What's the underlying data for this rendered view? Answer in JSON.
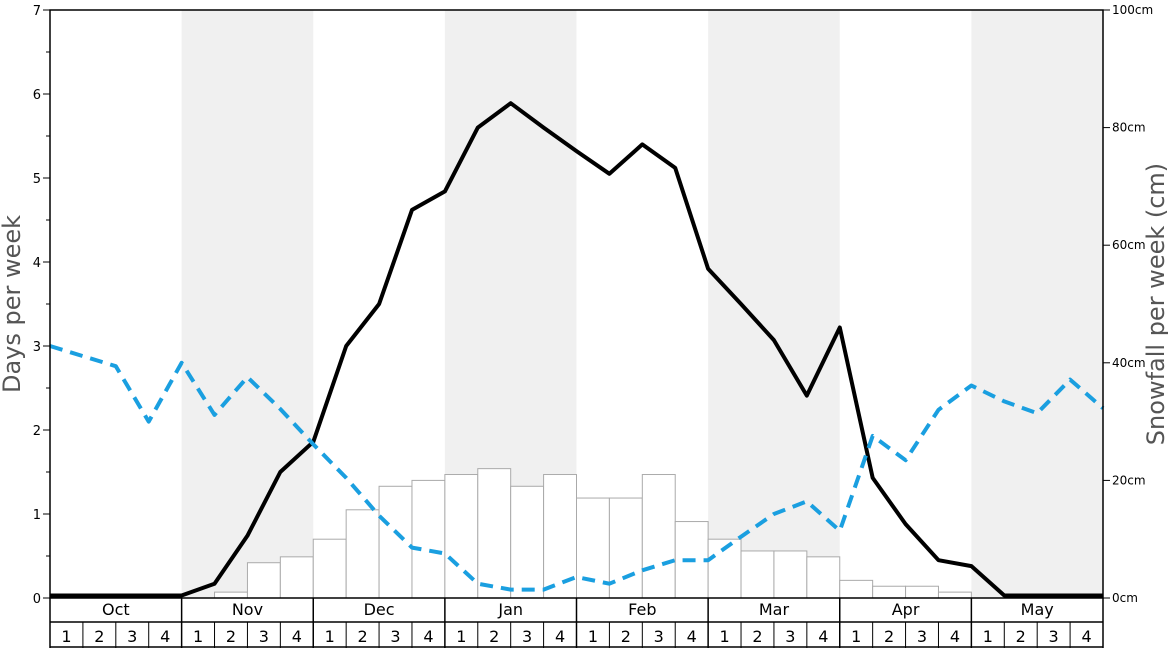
{
  "chart_data": {
    "type": "bar",
    "ylabel_left": "Days per week",
    "ylabel_right": "Snowfall per week (cm)",
    "y_left_range": [
      0,
      7
    ],
    "y_left_ticks": [
      "0",
      "1",
      "2",
      "3",
      "4",
      "5",
      "6",
      "7"
    ],
    "y_right_range": [
      0,
      100
    ],
    "y_right_ticks": [
      "0cm",
      "20cm",
      "40cm",
      "60cm",
      "80cm",
      "100cm"
    ],
    "months": [
      "Oct",
      "Nov",
      "Dec",
      "Jan",
      "Feb",
      "Mar",
      "Apr",
      "May"
    ],
    "weeks": [
      "1",
      "2",
      "3",
      "4"
    ],
    "shaded_months": [
      "Nov",
      "Jan",
      "Mar",
      "May"
    ],
    "colors": {
      "shade": "#f0f0f0",
      "bar_fill": "#ffffff",
      "bar_stroke": "#aaaaaa",
      "solid_line": "#000000",
      "dashed_line": "#1a9fe0"
    },
    "series": [
      {
        "kind": "bar",
        "axis": "right",
        "unit": "cm",
        "values": [
          0,
          0,
          0,
          0,
          0,
          1,
          6,
          7,
          10,
          15,
          19,
          20,
          21,
          22,
          19,
          21,
          17,
          17,
          21,
          13,
          10,
          8,
          8,
          7,
          3,
          2,
          2,
          1,
          0,
          0,
          0,
          0
        ]
      },
      {
        "kind": "line",
        "style": "solid",
        "axis": "left",
        "values": [
          0.03,
          0.03,
          0.03,
          0.03,
          0.03,
          0.17,
          0.74,
          1.5,
          1.86,
          3.0,
          3.5,
          4.62,
          4.84,
          5.6,
          5.89,
          5.6,
          5.32,
          5.05,
          5.4,
          5.12,
          3.92,
          3.5,
          3.07,
          2.41,
          3.22,
          1.43,
          0.88,
          0.45,
          0.38,
          0.03,
          0.03,
          0.03,
          0.03
        ]
      },
      {
        "kind": "line",
        "style": "dashed",
        "axis": "left",
        "values": [
          3.0,
          2.88,
          2.76,
          2.1,
          2.8,
          2.18,
          2.63,
          2.25,
          1.83,
          1.43,
          0.98,
          0.6,
          0.53,
          0.17,
          0.1,
          0.1,
          0.25,
          0.17,
          0.33,
          0.45,
          0.45,
          0.73,
          1.0,
          1.15,
          0.8,
          1.93,
          1.64,
          2.24,
          2.53,
          2.34,
          2.2,
          2.6,
          2.26
        ]
      }
    ]
  }
}
